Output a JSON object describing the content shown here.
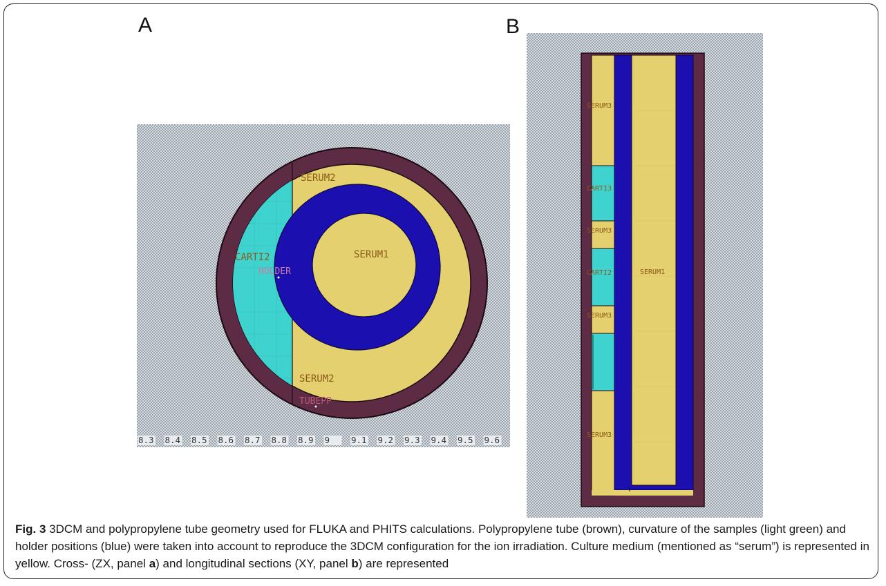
{
  "panels": {
    "a": {
      "label": "A"
    },
    "b": {
      "label": "B"
    }
  },
  "cross_section": {
    "regions": {
      "serum2_top": "SERUM2",
      "serum2_bottom": "SERUM2",
      "carti2": "CARTI2",
      "holder": "HOLDER",
      "serum1": "SERUM1",
      "tubepp": "TUBEPP"
    },
    "ticks": [
      "8.3",
      "8.4",
      "8.5",
      "8.6",
      "8.7",
      "8.8",
      "8.9",
      "9",
      "9.1",
      "9.2",
      "9.3",
      "9.4",
      "9.5",
      "9.6"
    ]
  },
  "longitudinal_section": {
    "regions": {
      "serum_a": "SERUM3",
      "carti_a": "CARTI3",
      "serum_b": "SERUM3",
      "carti_b": "CARTI2",
      "serum_c": "SERUM3",
      "serum_d": "SERUM3",
      "serum1": "SERUM1"
    }
  },
  "colors": {
    "tube": "#5e2b45",
    "serum": "#e4d06e",
    "cartilage": "#3fd3cf",
    "holder": "#1c0fb0",
    "background_pattern": "#a8b0b8"
  },
  "caption": {
    "fig": "Fig. 3",
    "p1": " 3DCM and polypropylene tube geometry used for FLUKA and PHITS calculations. Polypropylene tube (brown), curvature of the samples (light green) and holder positions (blue) were taken into account to reproduce the 3DCM configuration for the ion irradiation. Culture medium (mentioned as “serum”) is represented in yellow. Cross- (ZX, panel ",
    "a": "a",
    "p2": ") and longitudinal sections (XY, panel ",
    "b": "b",
    "p3": ") are represented"
  }
}
